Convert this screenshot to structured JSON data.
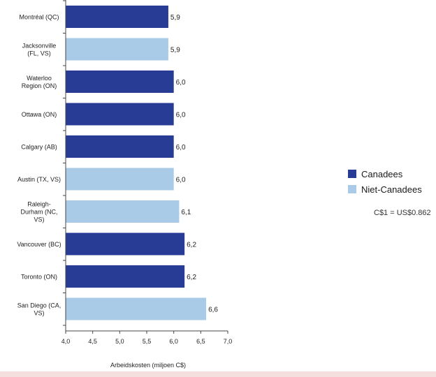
{
  "chart_data": {
    "type": "bar",
    "orientation": "horizontal",
    "categories": [
      [
        "Montréal (QC)"
      ],
      [
        "Jacksonville",
        "(FL, VS)"
      ],
      [
        "Waterloo",
        "Region (ON)"
      ],
      [
        "Ottawa (ON)"
      ],
      [
        "Calgary (AB)"
      ],
      [
        "Austin (TX, VS)"
      ],
      [
        "Raleigh-",
        "Durham (NC,",
        "VS)"
      ],
      [
        "Vancouver (BC)"
      ],
      [
        "Toronto (ON)"
      ],
      [
        "San Diego (CA,",
        "VS)"
      ]
    ],
    "values": [
      5.9,
      5.9,
      6.0,
      6.0,
      6.0,
      6.0,
      6.1,
      6.2,
      6.2,
      6.6
    ],
    "value_labels": [
      "5,9",
      "5,9",
      "6,0",
      "6,0",
      "6,0",
      "6,0",
      "6,1",
      "6,2",
      "6,2",
      "6,6"
    ],
    "groups": [
      "Canadees",
      "Niet-Canadees",
      "Canadees",
      "Canadees",
      "Canadees",
      "Niet-Canadees",
      "Niet-Canadees",
      "Canadees",
      "Canadees",
      "Niet-Canadees"
    ],
    "xlim": [
      4.0,
      7.0
    ],
    "xticks": [
      4.0,
      4.5,
      5.0,
      5.5,
      6.0,
      6.5,
      7.0
    ],
    "xtick_labels": [
      "4,0",
      "4,5",
      "5,0",
      "5,5",
      "6,0",
      "6,5",
      "7,0"
    ],
    "xlabel": "Arbeidskosten (miljoen C$)",
    "ylabel": "",
    "title": "",
    "grid": false,
    "legend_position": "right",
    "colors": {
      "Canadees": "#283c96",
      "Niet-Canadees": "#a9cbe8"
    }
  },
  "legend": [
    {
      "label": "Canadees",
      "color": "#283c96"
    },
    {
      "label": "Niet-Canadees",
      "color": "#a9cbe8"
    }
  ],
  "note": "C$1 = US$0.862"
}
